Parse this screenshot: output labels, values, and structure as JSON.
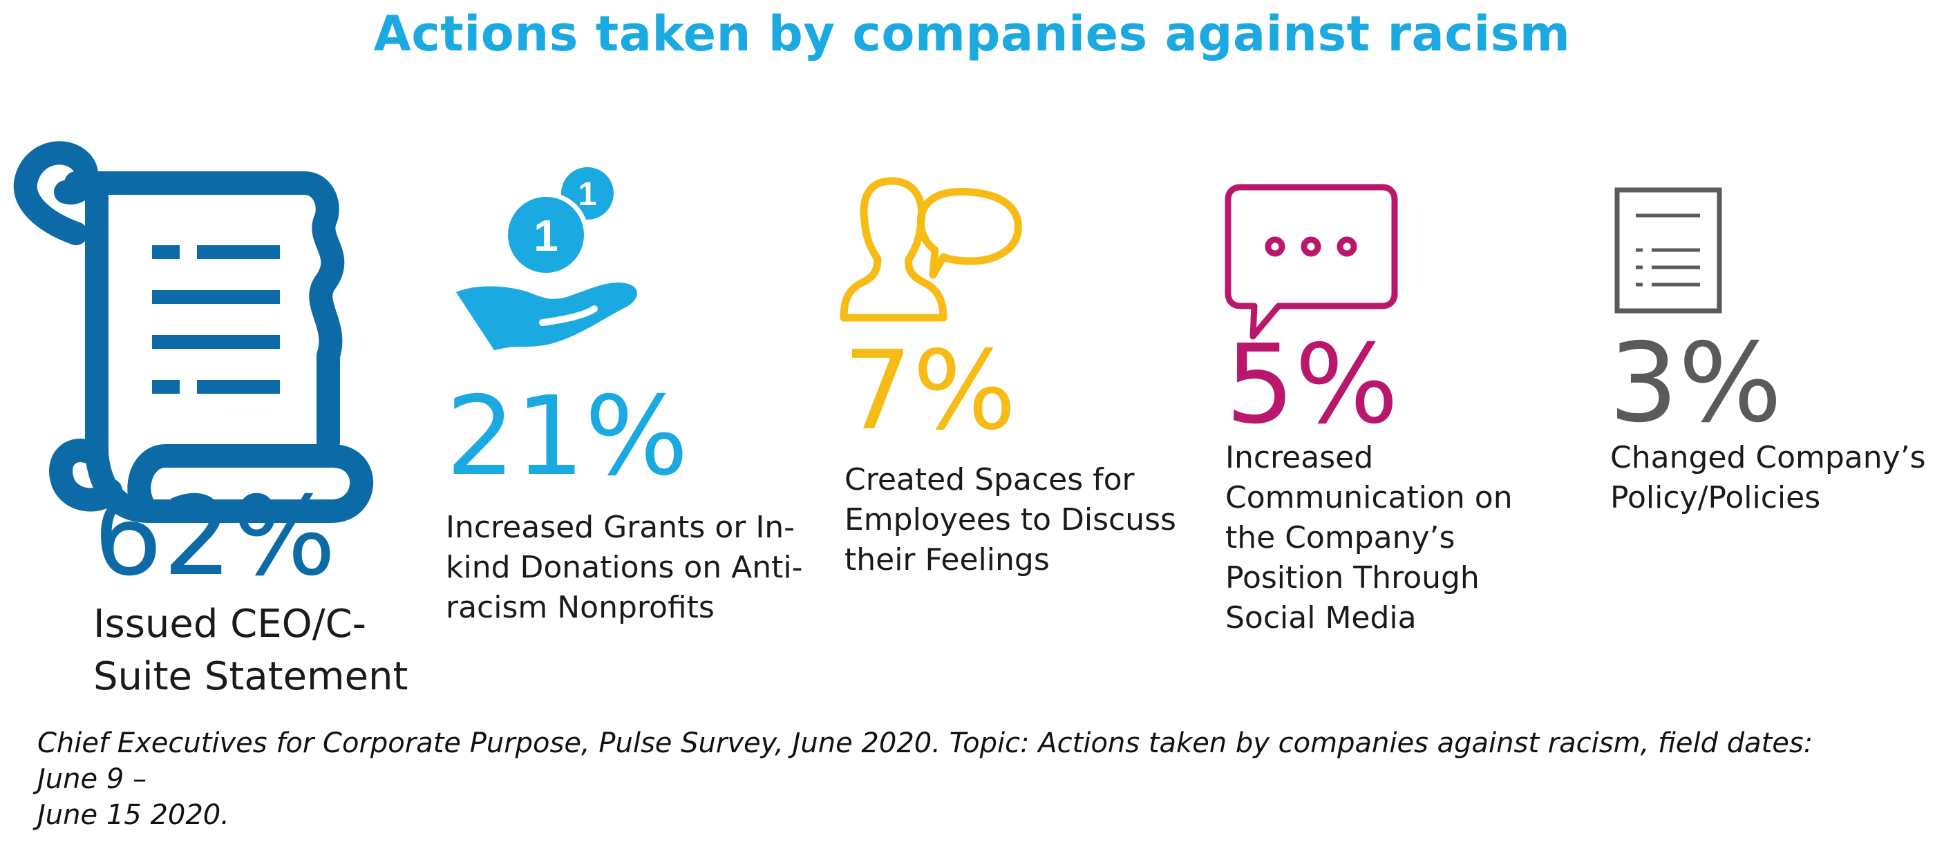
{
  "title": "Actions taken by companies against racism",
  "colors": {
    "title": "#1ba9e1",
    "ceo": "#0c6aa6",
    "grants": "#1ba9e1",
    "spaces": "#f7bb16",
    "communication": "#b9176b",
    "policy": "#5a5a5a"
  },
  "chart_data": {
    "type": "table",
    "title": "Actions taken by companies against racism",
    "items": [
      {
        "icon": "scroll-icon",
        "value": "62%",
        "label": "Issued CEO/C-\nSuite Statement"
      },
      {
        "icon": "donation-hand-coins-icon",
        "value": "21%",
        "label": "Increased Grants or In-\nkind Donations on Anti-\nracism Nonprofits"
      },
      {
        "icon": "person-speech-bubble-icon",
        "value": "7%",
        "label": "Created Spaces for\nEmployees to Discuss\ntheir Feelings"
      },
      {
        "icon": "chat-bubble-icon",
        "value": "5%",
        "label": "Increased\nCommunication on\nthe Company’s\nPosition Through\nSocial Media"
      },
      {
        "icon": "document-list-icon",
        "value": "3%",
        "label": "Changed Company’s\nPolicy/Policies"
      }
    ],
    "values": [
      62,
      21,
      7,
      5,
      3
    ]
  },
  "source": "Chief Executives for Corporate Purpose, Pulse Survey, June 2020. Topic: Actions taken by companies against racism, field dates: June 9 –\nJune 15 2020."
}
